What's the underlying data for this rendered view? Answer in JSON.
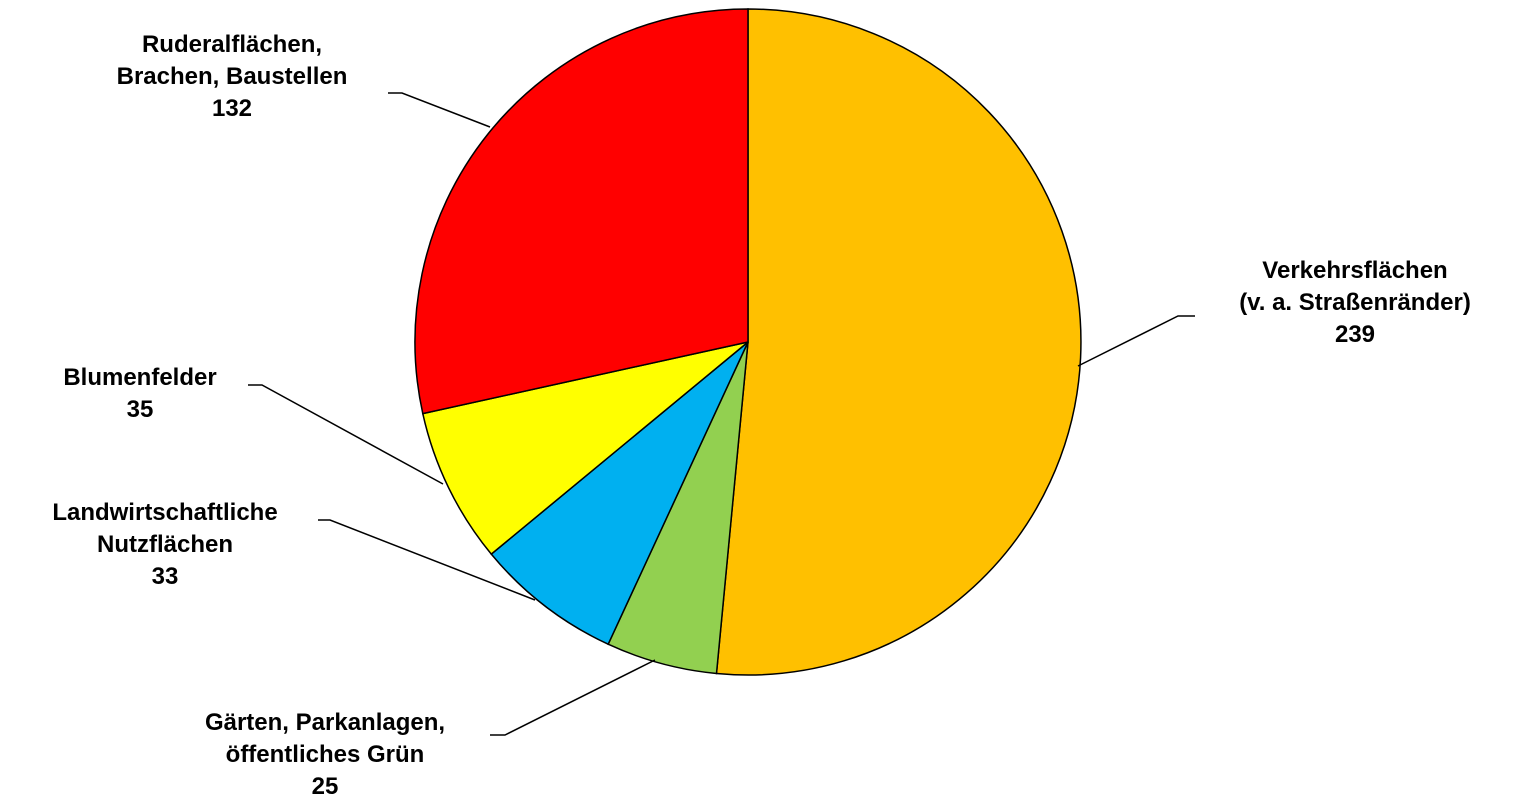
{
  "chart_data": {
    "type": "pie",
    "slices": [
      {
        "label_lines": [
          "Verkehrsflächen",
          "(v. a. Straßenränder)"
        ],
        "value": 239,
        "value_text": "239",
        "color": "#FFC000"
      },
      {
        "label_lines": [
          "Gärten, Parkanlagen,",
          "öffentliches Grün"
        ],
        "value": 25,
        "value_text": "25",
        "color": "#92D050"
      },
      {
        "label_lines": [
          "Landwirtschaftliche",
          "Nutzflächen"
        ],
        "value": 33,
        "value_text": "33",
        "color": "#00B0F0"
      },
      {
        "label_lines": [
          "Blumenfelder"
        ],
        "value": 35,
        "value_text": "35",
        "color": "#FFFF00"
      },
      {
        "label_lines": [
          "Ruderalflächen,",
          "Brachen, Baustellen"
        ],
        "value": 132,
        "value_text": "132",
        "color": "#FF0000"
      }
    ],
    "start": "12 o'clock",
    "direction": "clockwise",
    "legend": "none",
    "data_labels": "outside with leader lines"
  }
}
